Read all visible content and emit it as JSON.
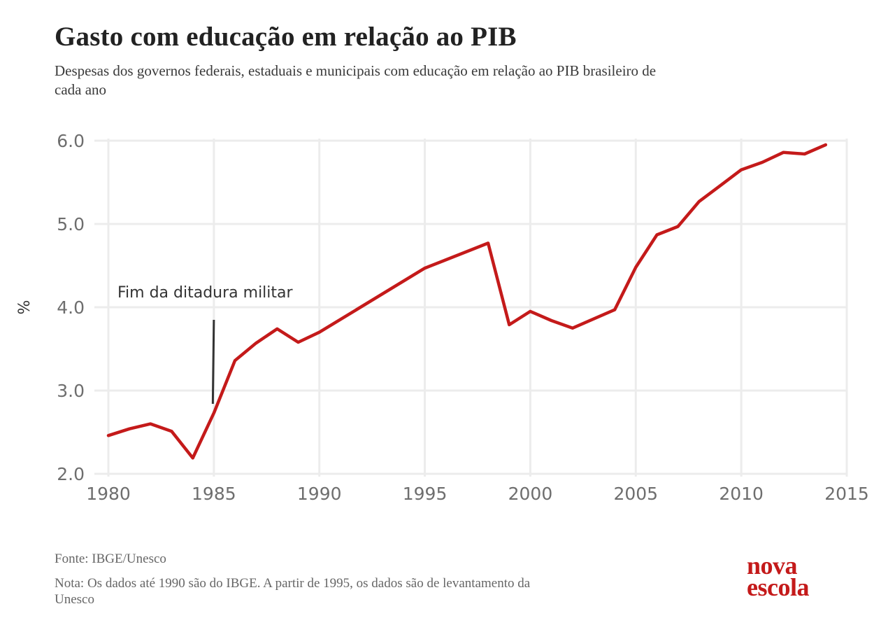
{
  "header": {
    "title": "Gasto com educação em relação ao PIB",
    "subtitle": "Despesas dos governos federais, estaduais e municipais com educação em relação ao PIB brasileiro de cada ano"
  },
  "footer": {
    "source": "Fonte: IBGE/Unesco",
    "note": "Nota: Os dados até 1990 são do IBGE. A partir de 1995, os dados são de levantamento da Unesco"
  },
  "logo": {
    "line1": "nova",
    "line2": "escola"
  },
  "colors": {
    "series": "#c41a1a",
    "grid": "#ececec",
    "annotation": "#333333"
  },
  "chart_data": {
    "type": "line",
    "title": "Gasto com educação em relação ao PIB",
    "subtitle": "Despesas dos governos federais, estaduais e municipais com educação em relação ao PIB brasileiro de cada ano",
    "xlabel": "",
    "ylabel": "%",
    "xlim": [
      1980,
      2015
    ],
    "ylim": [
      2.0,
      6.0
    ],
    "x_ticks": [
      1980,
      1985,
      1990,
      1995,
      2000,
      2005,
      2010,
      2015
    ],
    "y_ticks": [
      2.0,
      3.0,
      4.0,
      5.0,
      6.0
    ],
    "y_tick_labels": [
      "2.0",
      "3.0",
      "4.0",
      "5.0",
      "6.0"
    ],
    "grid": true,
    "series": [
      {
        "x": [
          1980,
          1981,
          1982,
          1983,
          1984,
          1985,
          1986,
          1987,
          1988,
          1989,
          1990,
          1995,
          1998,
          1999,
          2000,
          2001,
          2002,
          2003,
          2004,
          2005,
          2006,
          2007,
          2008,
          2009,
          2010,
          2011,
          2012,
          2013,
          2014
        ],
        "y": [
          2.46,
          2.54,
          2.6,
          2.51,
          2.19,
          2.73,
          3.36,
          3.57,
          3.74,
          3.58,
          3.7,
          4.47,
          4.77,
          3.79,
          3.95,
          3.84,
          3.75,
          3.86,
          3.97,
          4.48,
          4.87,
          4.97,
          5.27,
          5.46,
          5.65,
          5.74,
          5.86,
          5.84,
          5.95
        ]
      }
    ],
    "annotations": [
      {
        "text": "Fim da ditadura militar",
        "x": 1985
      }
    ]
  }
}
